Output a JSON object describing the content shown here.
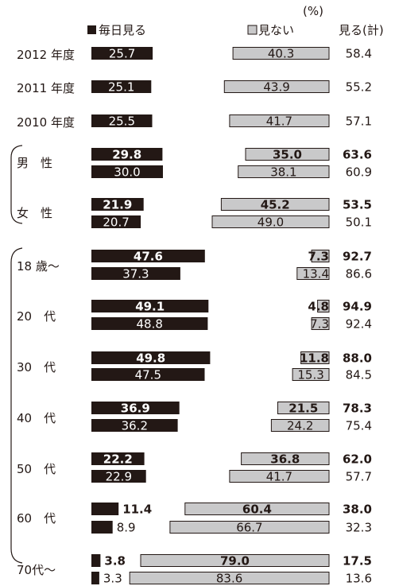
{
  "header": {
    "unit": "(%)",
    "legend_daily": "毎日見る",
    "legend_not": "見ない",
    "total_header": "見る(計)"
  },
  "colors": {
    "daily": "#231815",
    "daily_text": "#ffffff",
    "not": "#c9c9ca",
    "text": "#231815"
  },
  "chart_data": {
    "type": "bar",
    "layout": "diverging horizontal bars",
    "series": [
      {
        "name": "毎日見る",
        "key": "daily"
      },
      {
        "name": "見ない",
        "key": "not"
      },
      {
        "name": "見る(計)",
        "key": "total"
      }
    ],
    "xlim": [
      0,
      100
    ],
    "rows": [
      {
        "label": "2012 年度",
        "daily": 25.7,
        "not": 40.3,
        "total": 58.4,
        "bold": false
      },
      {
        "label": "2011 年度",
        "daily": 25.1,
        "not": 43.9,
        "total": 55.2,
        "bold": false
      },
      {
        "label": "2010 年度",
        "daily": 25.5,
        "not": 41.7,
        "total": 57.1,
        "bold": false
      },
      {
        "label": "男　性",
        "daily": 29.8,
        "not": 35.0,
        "total": 63.6,
        "bold": true
      },
      {
        "label": "",
        "daily": 30.0,
        "not": 38.1,
        "total": 60.9,
        "bold": false
      },
      {
        "label": "女　性",
        "daily": 21.9,
        "not": 45.2,
        "total": 53.5,
        "bold": true
      },
      {
        "label": "",
        "daily": 20.7,
        "not": 49.0,
        "total": 50.1,
        "bold": false
      },
      {
        "label": "18 歳〜",
        "daily": 47.6,
        "not": 7.3,
        "total": 92.7,
        "bold": true
      },
      {
        "label": "",
        "daily": 37.3,
        "not": 13.4,
        "total": 86.6,
        "bold": false
      },
      {
        "label": "20　代",
        "daily": 49.1,
        "not": 4.8,
        "total": 94.9,
        "bold": true
      },
      {
        "label": "",
        "daily": 48.8,
        "not": 7.3,
        "total": 92.4,
        "bold": false
      },
      {
        "label": "30　代",
        "daily": 49.8,
        "not": 11.8,
        "total": 88.0,
        "bold": true
      },
      {
        "label": "",
        "daily": 47.5,
        "not": 15.3,
        "total": 84.5,
        "bold": false
      },
      {
        "label": "40　代",
        "daily": 36.9,
        "not": 21.5,
        "total": 78.3,
        "bold": true
      },
      {
        "label": "",
        "daily": 36.2,
        "not": 24.2,
        "total": 75.4,
        "bold": false
      },
      {
        "label": "50　代",
        "daily": 22.2,
        "not": 36.8,
        "total": 62.0,
        "bold": true
      },
      {
        "label": "",
        "daily": 22.9,
        "not": 41.7,
        "total": 57.7,
        "bold": false
      },
      {
        "label": "60　代",
        "daily": 11.4,
        "not": 60.4,
        "total": 38.0,
        "bold": true
      },
      {
        "label": "",
        "daily": 8.9,
        "not": 66.7,
        "total": 32.3,
        "bold": false
      },
      {
        "label": "70代〜",
        "daily": 3.8,
        "not": 79.0,
        "total": 17.5,
        "bold": true
      },
      {
        "label": "",
        "daily": 3.3,
        "not": 83.6,
        "total": 13.6,
        "bold": false
      }
    ]
  }
}
